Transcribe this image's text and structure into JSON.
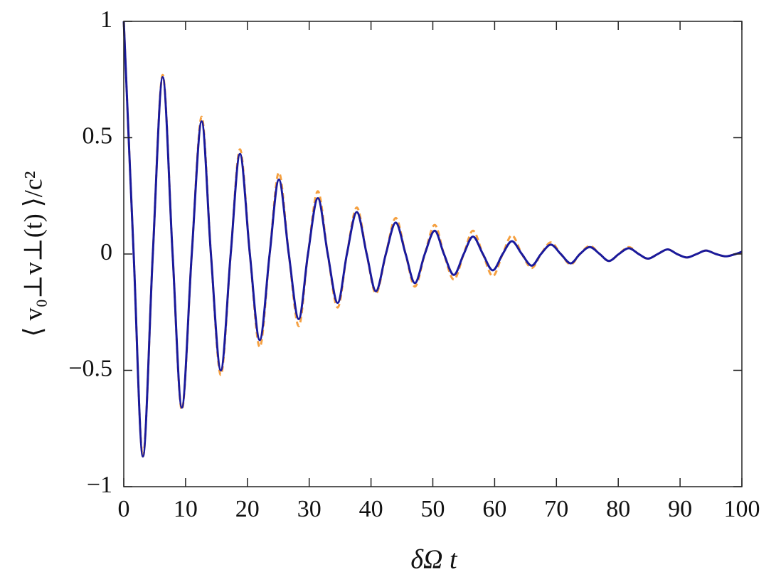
{
  "chart_data": {
    "type": "line",
    "xlabel": "δΩ t",
    "ylabel": "⟨ v₀⊥v⊥(t) ⟩/c²",
    "x": [
      0,
      1.6,
      3.1,
      4.7,
      6.3,
      7.9,
      9.4,
      11,
      12.6,
      14.1,
      15.7,
      17.3,
      18.8,
      20.4,
      22,
      23.6,
      25.1,
      26.7,
      28.3,
      29.8,
      31.4,
      33,
      34.6,
      36.1,
      37.7,
      39.3,
      40.8,
      42.4,
      44,
      45.6,
      47.1,
      48.7,
      50.3,
      51.8,
      53.4,
      55,
      56.5,
      58.1,
      59.7,
      61.3,
      62.8,
      64.4,
      66,
      67.5,
      69.1,
      70.7,
      72.3,
      73.8,
      75.4,
      77,
      78.5,
      80.1,
      81.7,
      83.3,
      84.8,
      86.4,
      88,
      89.5,
      91.1,
      92.7,
      94.2,
      95.8,
      97.4,
      99,
      100
    ],
    "series": [
      {
        "color": "#f5a040",
        "dashed": true,
        "values": [
          1,
          0,
          -0.87,
          0,
          0.77,
          0,
          -0.67,
          0,
          0.59,
          0,
          -0.52,
          0,
          0.45,
          0,
          -0.4,
          0,
          0.35,
          0,
          -0.31,
          0,
          0.27,
          0,
          -0.23,
          0,
          0.2,
          0,
          -0.17,
          0,
          0.155,
          0,
          -0.14,
          0,
          0.125,
          0,
          -0.11,
          0,
          0.1,
          0,
          -0.095,
          0,
          0.08,
          0,
          -0.06,
          0,
          0.05,
          0,
          -0.045,
          0,
          0.035,
          0,
          -0.03,
          0,
          0.03,
          0,
          -0.02,
          0,
          0.02,
          0,
          -0.015,
          0,
          0.015,
          0,
          -0.01,
          0,
          0.005
        ]
      },
      {
        "color": "#1a1a9c",
        "dashed": false,
        "values": [
          1,
          0,
          -0.87,
          0,
          0.76,
          0,
          -0.66,
          0,
          0.57,
          0,
          -0.5,
          0,
          0.43,
          0,
          -0.37,
          0,
          0.32,
          0,
          -0.28,
          0,
          0.24,
          0,
          -0.21,
          0,
          0.18,
          0,
          -0.16,
          0,
          0.135,
          0,
          -0.125,
          0,
          0.1,
          0,
          -0.09,
          0,
          0.075,
          0,
          -0.07,
          0,
          0.055,
          0,
          -0.05,
          0,
          0.04,
          0,
          -0.04,
          0,
          0.03,
          0,
          -0.03,
          0,
          0.025,
          0,
          -0.02,
          0,
          0.02,
          0,
          -0.015,
          0,
          0.015,
          0,
          -0.01,
          0,
          0.01
        ]
      }
    ],
    "xlim": [
      0,
      100
    ],
    "xticks": [
      0,
      10,
      20,
      30,
      40,
      50,
      60,
      70,
      80,
      90,
      100
    ],
    "ylim": [
      -1,
      1
    ],
    "yticks": [
      {
        "value": -1,
        "label": "−1"
      },
      {
        "value": -0.5,
        "label": "−0.5"
      },
      0,
      0.5,
      1
    ]
  }
}
